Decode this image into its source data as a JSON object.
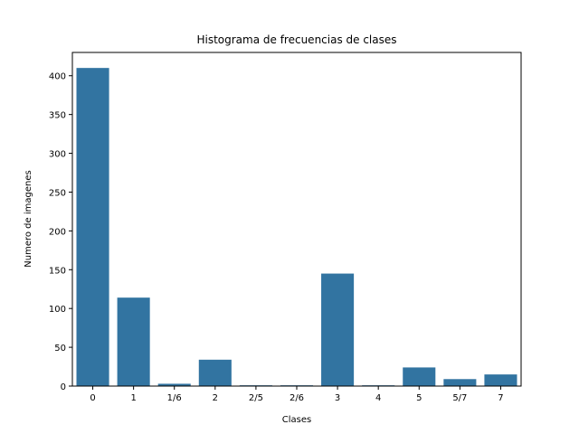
{
  "chart_data": {
    "type": "bar",
    "title": "Histograma de frecuencias de clases",
    "xlabel": "Clases",
    "ylabel": "Numero de imagenes",
    "categories": [
      "0",
      "1",
      "1/6",
      "2",
      "2/5",
      "2/6",
      "3",
      "4",
      "5",
      "5/7",
      "7"
    ],
    "values": [
      410,
      114,
      3,
      34,
      1,
      1,
      145,
      1,
      24,
      9,
      15
    ],
    "ylim": [
      0,
      430
    ],
    "yticks": [
      0,
      50,
      100,
      150,
      200,
      250,
      300,
      350,
      400
    ],
    "grid": false,
    "bar_color": "#3274a1"
  }
}
